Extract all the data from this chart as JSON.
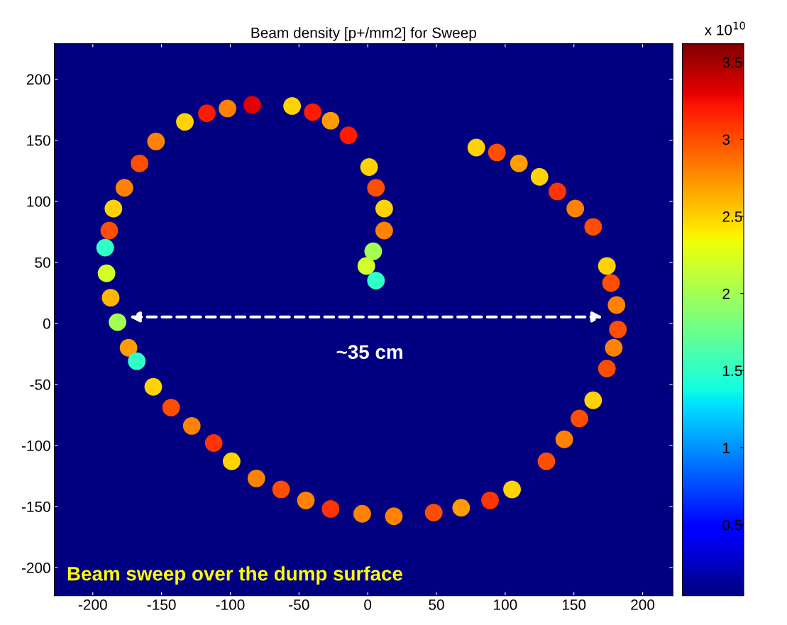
{
  "chart_data": {
    "type": "scatter",
    "title": "Beam density [p+/mm2] for Sweep",
    "x": [
      6,
      -1,
      4,
      12,
      12,
      6,
      1,
      -14,
      -27,
      -40,
      -55,
      -84,
      -102,
      -117,
      -133,
      -154,
      -166,
      -177,
      -185,
      -188,
      -191,
      -190,
      -187,
      -182,
      -174,
      -168,
      -156,
      -143,
      -128,
      -112,
      -99,
      -81,
      -63,
      -45,
      -27,
      -4,
      19,
      48,
      68,
      89,
      105,
      130,
      143,
      154,
      164,
      174,
      179,
      182,
      181,
      177,
      174,
      164,
      151,
      138,
      125,
      110,
      94,
      79
    ],
    "values": [
      35,
      47,
      59,
      76,
      94,
      111,
      128,
      154,
      166,
      173,
      178,
      179,
      176,
      172,
      165,
      149,
      131,
      111,
      94,
      76,
      62,
      41,
      21,
      1,
      -20,
      -31,
      -52,
      -69,
      -84,
      -98,
      -113,
      -127,
      -136,
      -145,
      -152,
      -156,
      -158,
      -155,
      -151,
      -145,
      -136,
      -113,
      -95,
      -78,
      -63,
      -37,
      -20,
      -5,
      15,
      33,
      47,
      79,
      94,
      108,
      120,
      131,
      140,
      144
    ],
    "cvalues": [
      1.5,
      2.2,
      2.0,
      2.8,
      2.5,
      3.0,
      2.5,
      3.2,
      2.7,
      3.2,
      2.5,
      3.3,
      2.8,
      3.2,
      2.5,
      2.8,
      3.0,
      2.8,
      2.5,
      3.0,
      1.5,
      2.2,
      2.6,
      2.0,
      2.7,
      1.5,
      2.5,
      3.0,
      2.8,
      3.1,
      2.5,
      2.8,
      3.0,
      2.8,
      3.1,
      2.8,
      2.8,
      3.0,
      2.7,
      3.1,
      2.5,
      3.0,
      2.8,
      3.0,
      2.5,
      3.0,
      2.8,
      3.0,
      2.8,
      3.0,
      2.5,
      3.0,
      2.8,
      3.1,
      2.5,
      2.7,
      3.0,
      2.5
    ],
    "clim": [
      0.04,
      3.62
    ],
    "cticks": [
      0.5,
      1,
      1.5,
      2,
      2.5,
      3,
      3.5
    ],
    "clabel": "x 10$^{10}$",
    "xlim": [
      -228,
      222
    ],
    "ylim": [
      -223,
      229
    ],
    "xticks": [
      -200,
      -150,
      -100,
      -50,
      0,
      50,
      100,
      150,
      200
    ],
    "yticks": [
      -200,
      -150,
      -100,
      -50,
      0,
      50,
      100,
      150,
      200
    ],
    "grid": false,
    "marker": "circle",
    "annotations": [
      "~35 cm",
      "Beam sweep over the dump surface"
    ]
  }
}
